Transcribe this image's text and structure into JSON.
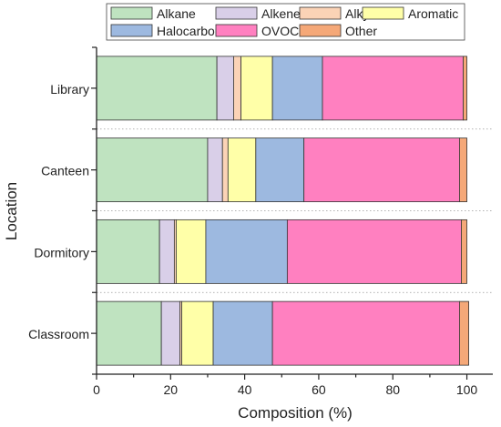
{
  "chart_data": {
    "type": "bar",
    "orientation": "horizontal",
    "stacked": true,
    "categories": [
      "Library",
      "Canteen",
      "Dormitory",
      "Classroom"
    ],
    "series": [
      {
        "name": "Alkane",
        "color": "#bfe3c0",
        "values": [
          32.5,
          30.0,
          17.0,
          17.5
        ]
      },
      {
        "name": "Alkene",
        "color": "#d9cfe8",
        "values": [
          4.5,
          4.0,
          4.0,
          5.0
        ]
      },
      {
        "name": "Alkyne",
        "color": "#fbd3b6",
        "values": [
          2.0,
          1.5,
          0.5,
          0.5
        ]
      },
      {
        "name": "Aromatic",
        "color": "#ffffa8",
        "values": [
          8.5,
          7.5,
          8.0,
          8.5
        ]
      },
      {
        "name": "Halocarbon",
        "color": "#9db9e0",
        "values": [
          13.5,
          13.0,
          22.0,
          16.0
        ]
      },
      {
        "name": "OVOC",
        "color": "#ff80c0",
        "values": [
          38.0,
          42.0,
          47.0,
          50.5
        ]
      },
      {
        "name": "Other",
        "color": "#f5a878",
        "values": [
          1.0,
          2.0,
          1.5,
          2.5
        ]
      }
    ],
    "xlabel": "Composition (%)",
    "ylabel": "Location",
    "xlim": [
      0,
      107
    ],
    "xticks": [
      0,
      20,
      40,
      60,
      80,
      100
    ],
    "legend_position": "top",
    "grid": false
  }
}
